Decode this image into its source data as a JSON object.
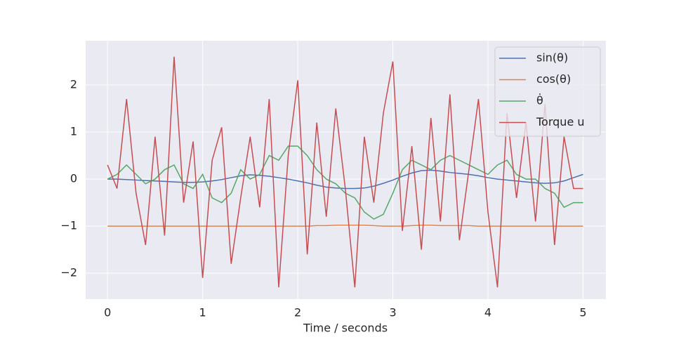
{
  "chart_data": {
    "type": "line",
    "xlabel": "Time / seconds",
    "x": [
      0,
      0.1,
      0.2,
      0.3,
      0.4,
      0.5,
      0.6,
      0.7,
      0.8,
      0.9,
      1,
      1.1,
      1.2,
      1.3,
      1.4,
      1.5,
      1.6,
      1.7,
      1.8,
      1.9,
      2,
      2.1,
      2.2,
      2.3,
      2.4,
      2.5,
      2.6,
      2.7,
      2.8,
      2.9,
      3,
      3.1,
      3.2,
      3.3,
      3.4,
      3.5,
      3.6,
      3.7,
      3.8,
      3.9,
      4,
      4.1,
      4.2,
      4.3,
      4.4,
      4.5,
      4.6,
      4.7,
      4.8,
      4.9,
      5
    ],
    "series": [
      {
        "name": "sin(θ)",
        "color": "#4c72b0",
        "values": [
          0,
          0,
          -0.01,
          -0.02,
          -0.03,
          -0.04,
          -0.05,
          -0.06,
          -0.07,
          -0.07,
          -0.06,
          -0.04,
          -0.01,
          0.03,
          0.07,
          0.09,
          0.08,
          0.06,
          0.03,
          0,
          -0.04,
          -0.08,
          -0.13,
          -0.17,
          -0.19,
          -0.2,
          -0.2,
          -0.19,
          -0.15,
          -0.09,
          -0.02,
          0.06,
          0.13,
          0.18,
          0.19,
          0.17,
          0.14,
          0.12,
          0.1,
          0.07,
          0.03,
          0,
          -0.02,
          -0.04,
          -0.06,
          -0.08,
          -0.09,
          -0.08,
          -0.04,
          0.03,
          0.1
        ]
      },
      {
        "name": "cos(θ)",
        "color": "#dd8452",
        "values": [
          -1,
          -1,
          -1,
          -1,
          -1,
          -1,
          -1,
          -1,
          -1,
          -1,
          -1,
          -1,
          -1,
          -1,
          -1,
          -1,
          -1,
          -1,
          -1,
          -1,
          -1,
          -1,
          -0.99,
          -0.99,
          -0.98,
          -0.98,
          -0.98,
          -0.98,
          -0.99,
          -1,
          -1,
          -1,
          -0.99,
          -0.98,
          -0.98,
          -0.99,
          -0.99,
          -0.99,
          -0.99,
          -1,
          -1,
          -1,
          -1,
          -1,
          -1,
          -1,
          -1,
          -1,
          -1,
          -1,
          -1
        ]
      },
      {
        "name": "θ̇",
        "color": "#55a868",
        "values": [
          0,
          0.1,
          0.3,
          0.1,
          -0.1,
          0,
          0.2,
          0.3,
          -0.1,
          -0.2,
          0.1,
          -0.4,
          -0.5,
          -0.3,
          0.2,
          0,
          0.1,
          0.5,
          0.4,
          0.7,
          0.7,
          0.5,
          0.2,
          0,
          -0.1,
          -0.3,
          -0.4,
          -0.7,
          -0.85,
          -0.75,
          -0.3,
          0.2,
          0.4,
          0.3,
          0.2,
          0.4,
          0.5,
          0.4,
          0.3,
          0.2,
          0.1,
          0.3,
          0.4,
          0.1,
          0,
          0,
          -0.2,
          -0.3,
          -0.6,
          -0.5,
          -0.5
        ]
      },
      {
        "name": "Torque u",
        "color": "#c44e52",
        "values": [
          0.3,
          -0.2,
          1.7,
          -0.3,
          -1.4,
          0.9,
          -1.2,
          2.6,
          -0.5,
          0.8,
          -2.1,
          0.4,
          1.1,
          -1.8,
          -0.4,
          0.9,
          -0.6,
          1.7,
          -2.3,
          0.5,
          2.1,
          -1.6,
          1.2,
          -0.8,
          1.5,
          -0.2,
          -2.3,
          0.9,
          -0.5,
          1.4,
          2.5,
          -1.1,
          0.7,
          -1.5,
          1.3,
          -0.9,
          1.8,
          -1.3,
          0.2,
          1.7,
          -0.7,
          -2.3,
          1.4,
          -0.4,
          1.2,
          -0.9,
          1.6,
          -1.4,
          0.9,
          -0.2,
          -0.2
        ]
      }
    ],
    "xlim": [
      -0.23,
      5.24
    ],
    "ylim": [
      -2.55,
      2.94
    ],
    "xticks": [
      0,
      1,
      2,
      3,
      4,
      5
    ],
    "yticks": [
      {
        "value": -2,
        "label": "−2"
      },
      {
        "value": -1,
        "label": "−1"
      },
      0,
      1,
      2
    ],
    "grid": true,
    "legend": "upper right",
    "background": "#eaeaf2"
  }
}
